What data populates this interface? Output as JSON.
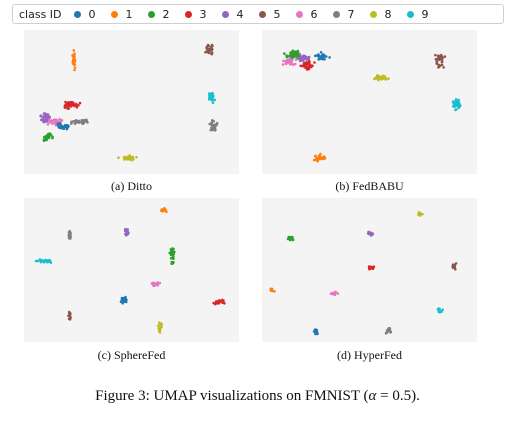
{
  "legend": {
    "title": "class ID",
    "items": [
      {
        "label": "0",
        "color": "#1f77b4"
      },
      {
        "label": "1",
        "color": "#ff7f0e"
      },
      {
        "label": "2",
        "color": "#2ca02c"
      },
      {
        "label": "3",
        "color": "#d62728"
      },
      {
        "label": "4",
        "color": "#9467bd"
      },
      {
        "label": "5",
        "color": "#8c564b"
      },
      {
        "label": "6",
        "color": "#e377c2"
      },
      {
        "label": "7",
        "color": "#7f7f7f"
      },
      {
        "label": "8",
        "color": "#bcbd22"
      },
      {
        "label": "9",
        "color": "#17becf"
      }
    ]
  },
  "panels": [
    {
      "caption": "(a) Ditto"
    },
    {
      "caption": "(b) FedBABU"
    },
    {
      "caption": "(c) SphereFed"
    },
    {
      "caption": "(d) HyperFed"
    }
  ],
  "figure_caption": {
    "prefix": "Figure 3: UMAP visualizations on FMNIST (",
    "alpha_symbol": "α",
    "equals": " = 0.5",
    "suffix": ")."
  }
}
